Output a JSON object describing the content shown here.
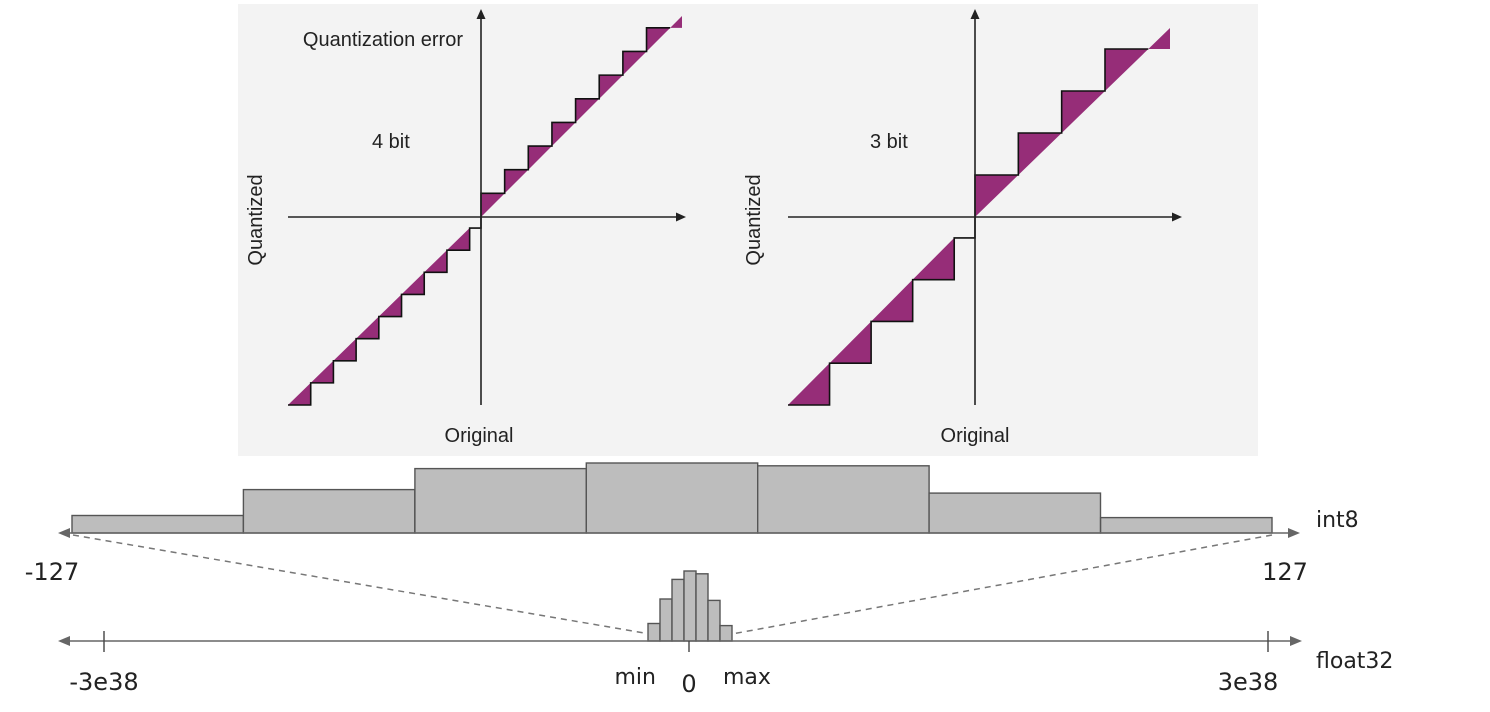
{
  "colors": {
    "error_fill": "#962d78",
    "error_label": "#962d78",
    "bar_fill": "#bdbdbd",
    "bar_stroke": "#555555",
    "axis": "#222222",
    "number_line": "#666666"
  },
  "top_charts": {
    "error_label": "Quantization error",
    "y_label": "Quantized",
    "x_label": "Original",
    "left": {
      "bits_label": "4 bit",
      "bits": 4
    },
    "right": {
      "bits_label": "3 bit",
      "bits": 3
    }
  },
  "mapping": {
    "int8": {
      "label": "int8",
      "min_label": "-127",
      "max_label": "127",
      "bin_heights": [
        0.25,
        0.62,
        0.92,
        1.0,
        0.96,
        0.57,
        0.22
      ]
    },
    "float32": {
      "label": "float32",
      "min_label": "-3e38",
      "max_label": "3e38",
      "zero_label": "0",
      "data_min_label": "min",
      "data_max_label": "max",
      "bin_heights": [
        0.25,
        0.6,
        0.88,
        1.0,
        0.96,
        0.58,
        0.22
      ]
    }
  }
}
